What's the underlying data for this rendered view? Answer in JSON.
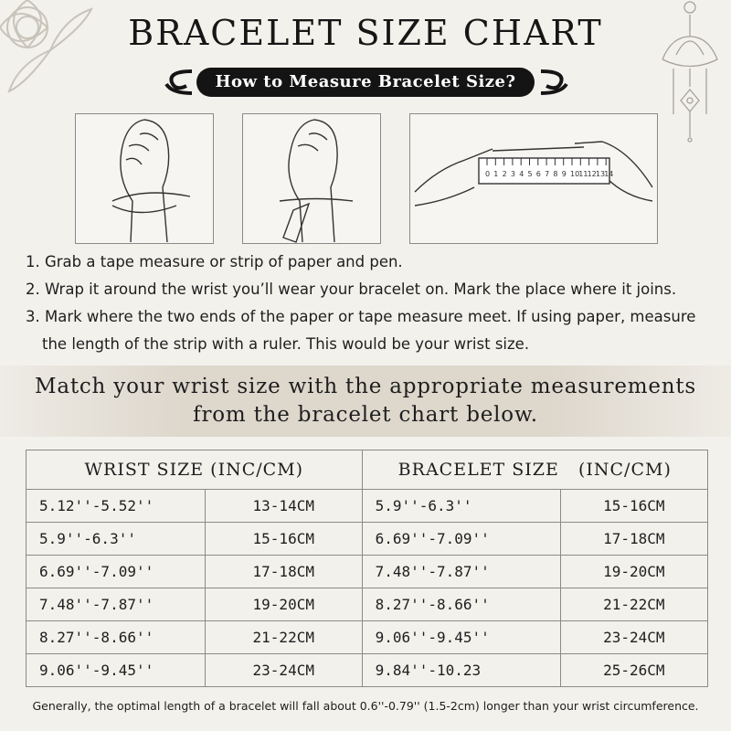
{
  "header": {
    "title": "BRACELET SIZE CHART",
    "subtitle": "How to Measure Bracelet Size?"
  },
  "ruler": {
    "labels": [
      0,
      1,
      2,
      3,
      4,
      5,
      6,
      7,
      8,
      9,
      10,
      11,
      12,
      13,
      14
    ]
  },
  "steps": [
    "1. Grab a tape measure or strip of paper and pen.",
    "2. Wrap it around the wrist you’ll wear your bracelet on. Mark the place where it joins.",
    "3. Mark where the two ends of the paper or tape measure meet. If using paper, measure the length of the strip with a ruler. This would be your wrist size."
  ],
  "banner": [
    "Match your wrist size with the appropriate measurements",
    "from the bracelet chart below."
  ],
  "table": {
    "headers": [
      "WRIST SIZE (INC/CM)",
      "BRACELET SIZE   (INC/CM)"
    ],
    "rows": [
      [
        "5.12''-5.52''",
        "13-14CM",
        "5.9''-6.3''",
        "15-16CM"
      ],
      [
        "5.9''-6.3''",
        "15-16CM",
        "6.69''-7.09''",
        "17-18CM"
      ],
      [
        "6.69''-7.09''",
        "17-18CM",
        "7.48''-7.87''",
        "19-20CM"
      ],
      [
        "7.48''-7.87''",
        "19-20CM",
        "8.27''-8.66''",
        "21-22CM"
      ],
      [
        "8.27''-8.66''",
        "21-22CM",
        "9.06''-9.45''",
        "23-24CM"
      ],
      [
        "9.06''-9.45''",
        "23-24CM",
        "9.84''-10.23",
        "25-26CM"
      ]
    ]
  },
  "footnote": "Generally, the optimal length of a bracelet will fall about 0.6''-0.79'' (1.5-2cm) longer than your wrist circumference."
}
